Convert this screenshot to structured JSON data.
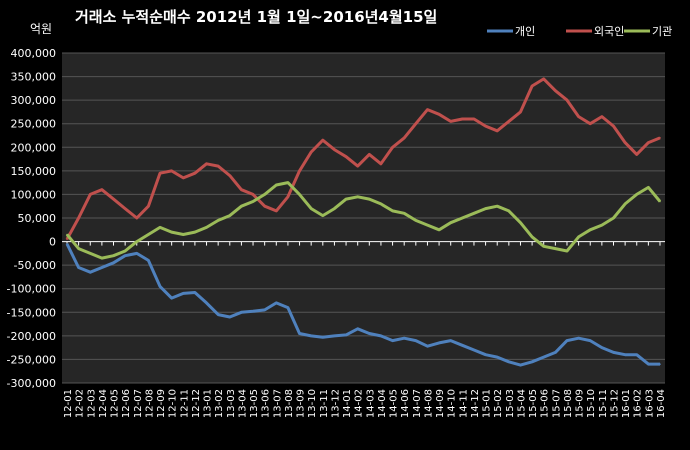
{
  "chart_data": {
    "type": "line",
    "title": "거래소  누적순매수 2012년 1월 1일~2016년4월15일",
    "ylabel": "억원",
    "xlabel": "",
    "ylim": [
      -300000,
      400000
    ],
    "yticks": [
      400000,
      350000,
      300000,
      250000,
      200000,
      150000,
      100000,
      50000,
      0,
      -50000,
      -100000,
      -150000,
      -200000,
      -250000,
      -300000
    ],
    "ytick_labels": [
      "400,000",
      "350,000",
      "300,000",
      "250,000",
      "200,000",
      "150,000",
      "100,000",
      "50,000",
      "0",
      "-50,000",
      "-100,000",
      "-150,000",
      "-200,000",
      "-250,000",
      "-300,000"
    ],
    "x_labels": [
      "12-01",
      "12-02",
      "12-03",
      "12-04",
      "12-05",
      "12-06",
      "12-07",
      "12-08",
      "12-09",
      "12-10",
      "12-11",
      "12-12",
      "13-01",
      "13-02",
      "13-03",
      "13-04",
      "13-05",
      "13-06",
      "13-07",
      "13-08",
      "13-09",
      "13-10",
      "13-11",
      "13-12",
      "14-01",
      "14-02",
      "14-03",
      "14-04",
      "14-05",
      "14-06",
      "14-07",
      "14-08",
      "14-09",
      "14-10",
      "14-11",
      "14-12",
      "15-01",
      "15-02",
      "15-03",
      "15-04",
      "15-05",
      "15-06",
      "15-07",
      "15-08",
      "15-09",
      "15-10",
      "15-11",
      "15-12",
      "16-01",
      "16-02",
      "16-03",
      "16-04"
    ],
    "grid": true,
    "legend_position": "top-right",
    "series": [
      {
        "name": "개인",
        "color": "#4F81BD",
        "values": [
          -5000,
          -55000,
          -65000,
          -55000,
          -45000,
          -30000,
          -25000,
          -40000,
          -95000,
          -120000,
          -110000,
          -108000,
          -130000,
          -155000,
          -160000,
          -150000,
          -148000,
          -145000,
          -130000,
          -140000,
          -195000,
          -200000,
          -203000,
          -200000,
          -198000,
          -185000,
          -195000,
          -200000,
          -210000,
          -205000,
          -210000,
          -222000,
          -215000,
          -210000,
          -220000,
          -230000,
          -240000,
          -245000,
          -255000,
          -262000,
          -255000,
          -245000,
          -235000,
          -210000,
          -205000,
          -210000,
          -225000,
          -235000,
          -240000,
          -240000,
          -260000,
          -260000
        ]
      },
      {
        "name": "외국인",
        "color": "#C0504D",
        "values": [
          5000,
          50000,
          100000,
          110000,
          90000,
          70000,
          50000,
          75000,
          145000,
          150000,
          135000,
          145000,
          165000,
          160000,
          140000,
          110000,
          100000,
          75000,
          65000,
          95000,
          150000,
          190000,
          215000,
          195000,
          180000,
          160000,
          185000,
          165000,
          200000,
          220000,
          250000,
          280000,
          270000,
          255000,
          260000,
          260000,
          245000,
          235000,
          255000,
          275000,
          330000,
          345000,
          320000,
          300000,
          265000,
          250000,
          265000,
          245000,
          210000,
          185000,
          210000,
          220000
        ]
      },
      {
        "name": "기관",
        "color": "#9BBB59",
        "values": [
          15000,
          -15000,
          -25000,
          -35000,
          -30000,
          -20000,
          0,
          15000,
          30000,
          20000,
          15000,
          20000,
          30000,
          45000,
          55000,
          75000,
          85000,
          100000,
          120000,
          125000,
          100000,
          70000,
          55000,
          70000,
          90000,
          95000,
          90000,
          80000,
          65000,
          60000,
          45000,
          35000,
          25000,
          40000,
          50000,
          60000,
          70000,
          75000,
          65000,
          40000,
          10000,
          -10000,
          -15000,
          -20000,
          10000,
          25000,
          35000,
          50000,
          80000,
          100000,
          115000,
          85000
        ]
      }
    ]
  }
}
